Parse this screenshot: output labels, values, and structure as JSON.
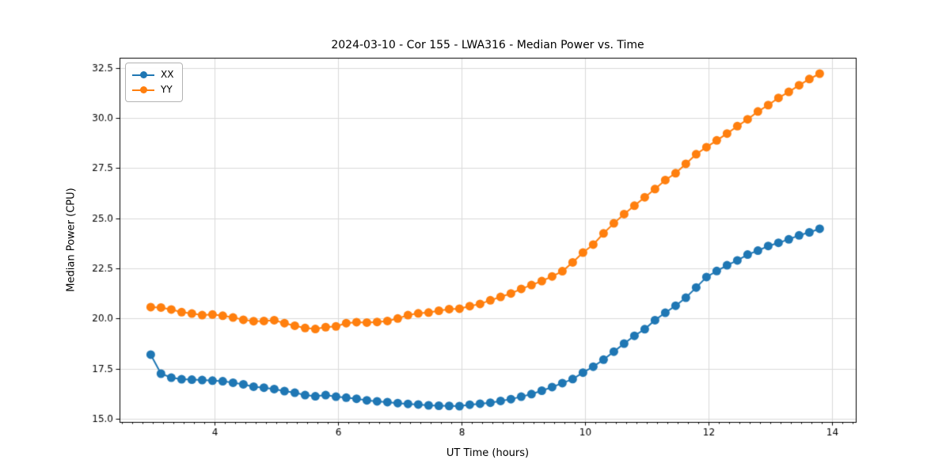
{
  "figure": {
    "title": "2024-03-10 - Cor 155 - LWA316 - Median Power vs. Time",
    "background_color": "#ffffff"
  },
  "chart_data": {
    "type": "line",
    "title": "2024-03-10 - Cor 155 - LWA316 - Median Power vs. Time",
    "xlabel": "UT Time (hours)",
    "ylabel": "Median Power (CPU)",
    "xlim": [
      2.462,
      14.385
    ],
    "ylim": [
      14.84,
      33.01
    ],
    "x_major_ticks": [
      4,
      6,
      8,
      10,
      12,
      14
    ],
    "x_tick_labels": [
      "4",
      "6",
      "8",
      "10",
      "12",
      "14"
    ],
    "x_minor_tick_step": 0.166667,
    "y_major_ticks": [
      15.0,
      17.5,
      20.0,
      22.5,
      25.0,
      27.5,
      30.0,
      32.5
    ],
    "y_tick_labels": [
      "15.0",
      "17.5",
      "20.0",
      "22.5",
      "25.0",
      "27.5",
      "30.0",
      "32.5"
    ],
    "grid": true,
    "grid_color": "#dadada",
    "axes_edge_color": "#000000",
    "legend_position": "upper-left",
    "marker": "circle",
    "marker_radius": 5.5,
    "line_width": 2,
    "x": [
      2.967,
      3.133,
      3.3,
      3.467,
      3.633,
      3.8,
      3.967,
      4.133,
      4.3,
      4.467,
      4.633,
      4.8,
      4.967,
      5.133,
      5.3,
      5.467,
      5.633,
      5.8,
      5.967,
      6.133,
      6.3,
      6.467,
      6.633,
      6.8,
      6.967,
      7.133,
      7.3,
      7.467,
      7.633,
      7.8,
      7.967,
      8.133,
      8.3,
      8.467,
      8.633,
      8.8,
      8.967,
      9.133,
      9.3,
      9.467,
      9.633,
      9.8,
      9.967,
      10.133,
      10.3,
      10.467,
      10.633,
      10.8,
      10.967,
      11.133,
      11.3,
      11.467,
      11.633,
      11.8,
      11.967,
      12.133,
      12.3,
      12.467,
      12.633,
      12.8,
      12.967,
      13.133,
      13.3,
      13.467,
      13.633,
      13.8
    ],
    "series": [
      {
        "name": "XX",
        "color": "#1f77b4",
        "values": [
          18.2,
          17.25,
          17.05,
          16.97,
          16.95,
          16.93,
          16.9,
          16.87,
          16.8,
          16.72,
          16.6,
          16.55,
          16.48,
          16.38,
          16.3,
          16.18,
          16.12,
          16.18,
          16.1,
          16.05,
          16.0,
          15.92,
          15.87,
          15.83,
          15.78,
          15.74,
          15.71,
          15.67,
          15.65,
          15.64,
          15.63,
          15.7,
          15.75,
          15.8,
          15.89,
          15.98,
          16.1,
          16.23,
          16.4,
          16.58,
          16.78,
          16.98,
          17.3,
          17.6,
          17.95,
          18.35,
          18.75,
          19.14,
          19.47,
          19.92,
          20.29,
          20.64,
          21.04,
          21.55,
          22.07,
          22.37,
          22.66,
          22.9,
          23.19,
          23.39,
          23.62,
          23.78,
          23.95,
          24.15,
          24.3,
          24.48
        ]
      },
      {
        "name": "YY",
        "color": "#ff7f0e",
        "values": [
          20.57,
          20.55,
          20.45,
          20.32,
          20.25,
          20.17,
          20.2,
          20.14,
          20.05,
          19.94,
          19.87,
          19.88,
          19.92,
          19.77,
          19.64,
          19.53,
          19.48,
          19.57,
          19.61,
          19.77,
          19.82,
          19.8,
          19.83,
          19.88,
          20.0,
          20.17,
          20.26,
          20.3,
          20.39,
          20.47,
          20.49,
          20.62,
          20.73,
          20.91,
          21.08,
          21.25,
          21.48,
          21.67,
          21.87,
          22.1,
          22.36,
          22.8,
          23.29,
          23.69,
          24.25,
          24.75,
          25.21,
          25.63,
          26.05,
          26.46,
          26.91,
          27.25,
          27.72,
          28.2,
          28.55,
          28.89,
          29.23,
          29.6,
          29.94,
          30.33,
          30.65,
          31.01,
          31.31,
          31.64,
          31.95,
          32.22
        ]
      }
    ]
  }
}
